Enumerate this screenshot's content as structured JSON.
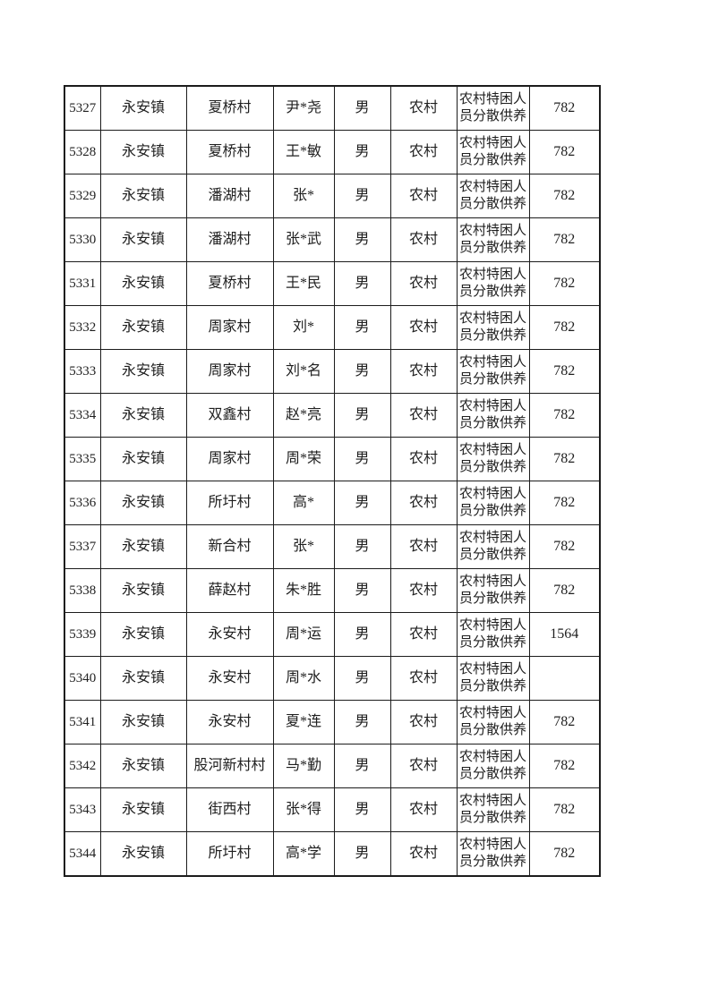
{
  "page": {
    "background": "#ffffff"
  },
  "table": {
    "border_color": "#1c1c1c",
    "text_color": "#1f1f1f",
    "column_keys": [
      "id",
      "town",
      "village",
      "name",
      "gender",
      "area_type",
      "assistance_category",
      "amount"
    ],
    "rows": [
      {
        "id": "5327",
        "town": "永安镇",
        "village": "夏桥村",
        "name": "尹*尧",
        "gender": "男",
        "area_type": "农村",
        "assistance_category": "农村特困人员分散供养",
        "amount": "782"
      },
      {
        "id": "5328",
        "town": "永安镇",
        "village": "夏桥村",
        "name": "王*敏",
        "gender": "男",
        "area_type": "农村",
        "assistance_category": "农村特困人员分散供养",
        "amount": "782"
      },
      {
        "id": "5329",
        "town": "永安镇",
        "village": "潘湖村",
        "name": "张*",
        "gender": "男",
        "area_type": "农村",
        "assistance_category": "农村特困人员分散供养",
        "amount": "782"
      },
      {
        "id": "5330",
        "town": "永安镇",
        "village": "潘湖村",
        "name": "张*武",
        "gender": "男",
        "area_type": "农村",
        "assistance_category": "农村特困人员分散供养",
        "amount": "782"
      },
      {
        "id": "5331",
        "town": "永安镇",
        "village": "夏桥村",
        "name": "王*民",
        "gender": "男",
        "area_type": "农村",
        "assistance_category": "农村特困人员分散供养",
        "amount": "782"
      },
      {
        "id": "5332",
        "town": "永安镇",
        "village": "周家村",
        "name": "刘*",
        "gender": "男",
        "area_type": "农村",
        "assistance_category": "农村特困人员分散供养",
        "amount": "782"
      },
      {
        "id": "5333",
        "town": "永安镇",
        "village": "周家村",
        "name": "刘*名",
        "gender": "男",
        "area_type": "农村",
        "assistance_category": "农村特困人员分散供养",
        "amount": "782"
      },
      {
        "id": "5334",
        "town": "永安镇",
        "village": "双鑫村",
        "name": "赵*亮",
        "gender": "男",
        "area_type": "农村",
        "assistance_category": "农村特困人员分散供养",
        "amount": "782"
      },
      {
        "id": "5335",
        "town": "永安镇",
        "village": "周家村",
        "name": "周*荣",
        "gender": "男",
        "area_type": "农村",
        "assistance_category": "农村特困人员分散供养",
        "amount": "782"
      },
      {
        "id": "5336",
        "town": "永安镇",
        "village": "所圩村",
        "name": "高*",
        "gender": "男",
        "area_type": "农村",
        "assistance_category": "农村特困人员分散供养",
        "amount": "782"
      },
      {
        "id": "5337",
        "town": "永安镇",
        "village": "新合村",
        "name": "张*",
        "gender": "男",
        "area_type": "农村",
        "assistance_category": "农村特困人员分散供养",
        "amount": "782"
      },
      {
        "id": "5338",
        "town": "永安镇",
        "village": "薛赵村",
        "name": "朱*胜",
        "gender": "男",
        "area_type": "农村",
        "assistance_category": "农村特困人员分散供养",
        "amount": "782"
      },
      {
        "id": "5339",
        "town": "永安镇",
        "village": "永安村",
        "name": "周*运",
        "gender": "男",
        "area_type": "农村",
        "assistance_category": "农村特困人员分散供养",
        "amount": "1564"
      },
      {
        "id": "5340",
        "town": "永安镇",
        "village": "永安村",
        "name": "周*水",
        "gender": "男",
        "area_type": "农村",
        "assistance_category": "农村特困人员分散供养",
        "amount": ""
      },
      {
        "id": "5341",
        "town": "永安镇",
        "village": "永安村",
        "name": "夏*连",
        "gender": "男",
        "area_type": "农村",
        "assistance_category": "农村特困人员分散供养",
        "amount": "782"
      },
      {
        "id": "5342",
        "town": "永安镇",
        "village": "股河新村村",
        "name": "马*勤",
        "gender": "男",
        "area_type": "农村",
        "assistance_category": "农村特困人员分散供养",
        "amount": "782"
      },
      {
        "id": "5343",
        "town": "永安镇",
        "village": "街西村",
        "name": "张*得",
        "gender": "男",
        "area_type": "农村",
        "assistance_category": "农村特困人员分散供养",
        "amount": "782"
      },
      {
        "id": "5344",
        "town": "永安镇",
        "village": "所圩村",
        "name": "高*学",
        "gender": "男",
        "area_type": "农村",
        "assistance_category": "农村特困人员分散供养",
        "amount": "782"
      }
    ]
  }
}
